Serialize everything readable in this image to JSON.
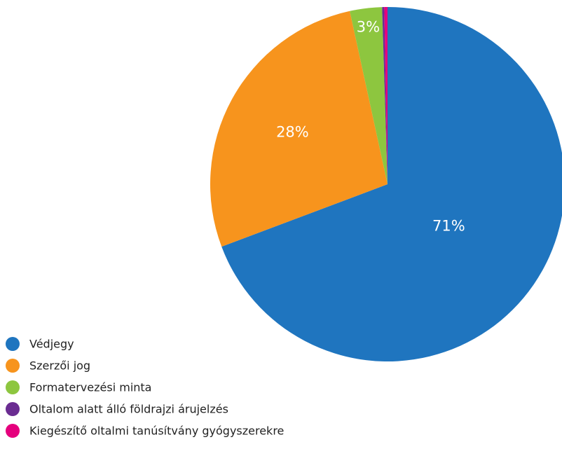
{
  "chart_data": {
    "type": "pie",
    "categories": [
      "Védjegy",
      "Szerzői jog",
      "Formatervezési minta",
      "Oltalom alatt álló földrajzi árujelzés",
      "Kiegészítő oltalmi tanúsítvány gyógyszerekre"
    ],
    "values": [
      71,
      28,
      3,
      0.2,
      0.3
    ],
    "value_labels": [
      "71%",
      "28%",
      "3%",
      null,
      null
    ],
    "colors": [
      "#1f75bf",
      "#f7941d",
      "#8dc63f",
      "#6a2c91",
      "#e5007d"
    ]
  }
}
